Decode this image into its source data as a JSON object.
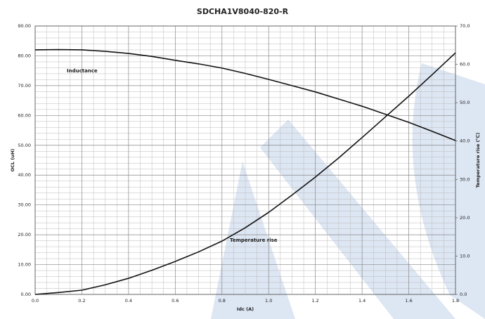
{
  "chart_data": {
    "type": "line",
    "title": "SDCHA1V8040-820-R",
    "xlabel": "Idc (A)",
    "ylabel": "OCL (uH)",
    "y2label": "Temperature rise (℃)",
    "x": [
      0,
      0.1,
      0.2,
      0.3,
      0.4,
      0.5,
      0.6,
      0.7,
      0.8,
      0.9,
      1.0,
      1.1,
      1.2,
      1.3,
      1.4,
      1.5,
      1.6,
      1.7,
      1.8
    ],
    "series": [
      {
        "name": "Inductance",
        "color": "#111111",
        "values": [
          82,
          82.1,
          82,
          81.5,
          80.8,
          79.8,
          78.5,
          77.3,
          75.9,
          74.1,
          72.1,
          70,
          67.9,
          65.5,
          63.1,
          60.4,
          57.7,
          54.7,
          51.6
        ]
      },
      {
        "name": "Temperature rise",
        "color": "#111111",
        "axis": "y2",
        "values": [
          0,
          0.5,
          1.1,
          2.5,
          4.2,
          6.3,
          8.6,
          11.1,
          13.9,
          17.4,
          21.4,
          25.9,
          30.6,
          35.6,
          40.9,
          46.3,
          51.7,
          57.3,
          63.0
        ]
      }
    ],
    "annotations": [
      "Inductance",
      "Temperature rise"
    ],
    "xlim": [
      0,
      1.8
    ],
    "xticks": [
      {
        "value": 0,
        "label": "0.0"
      },
      0.2,
      0.4,
      0.6,
      0.8,
      {
        "value": 1,
        "label": "1.0"
      },
      1.2,
      1.4,
      1.6,
      1.8
    ],
    "ylim": [
      0,
      90
    ],
    "yticks": [
      {
        "value": 0,
        "label": "0.00"
      },
      {
        "value": 10,
        "label": "10.00"
      },
      {
        "value": 20,
        "label": "20.00"
      },
      {
        "value": 30,
        "label": "30.00"
      },
      {
        "value": 40,
        "label": "40.00"
      },
      {
        "value": 50,
        "label": "50.00"
      },
      {
        "value": 60,
        "label": "60.00"
      },
      {
        "value": 70,
        "label": "70.00"
      },
      {
        "value": 80,
        "label": "80.00"
      },
      {
        "value": 90,
        "label": "90.00"
      }
    ],
    "y2lim": [
      0,
      70
    ],
    "y2ticks": [
      {
        "value": 0,
        "label": "0.0"
      },
      {
        "value": 10,
        "label": "10.0"
      },
      {
        "value": 20,
        "label": "20.0"
      },
      {
        "value": 30,
        "label": "30.0"
      },
      {
        "value": 40,
        "label": "40.0"
      },
      {
        "value": 50,
        "label": "50.0"
      },
      {
        "value": 60,
        "label": "60.0"
      },
      {
        "value": 70,
        "label": "70.0"
      }
    ],
    "grid": true
  }
}
